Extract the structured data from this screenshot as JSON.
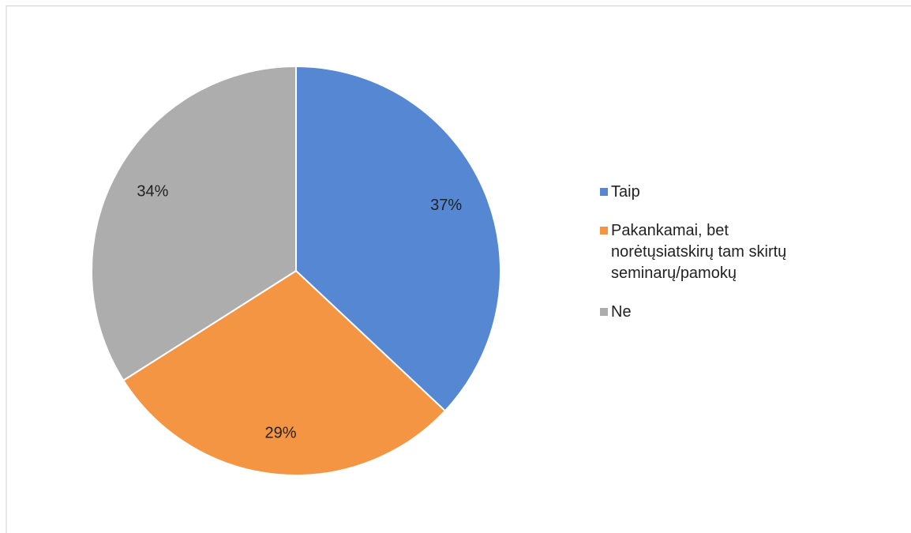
{
  "chart_data": {
    "type": "pie",
    "categories": [
      "Taip",
      "Pakankamai, bet norėtųsiatskirų tam skirtų seminarų/pamokų",
      "Ne"
    ],
    "values": [
      37,
      29,
      34
    ],
    "value_labels": [
      "37%",
      "29%",
      "34%"
    ],
    "colors": [
      "#5587d2",
      "#f39542",
      "#adadad"
    ],
    "legend": "right"
  }
}
